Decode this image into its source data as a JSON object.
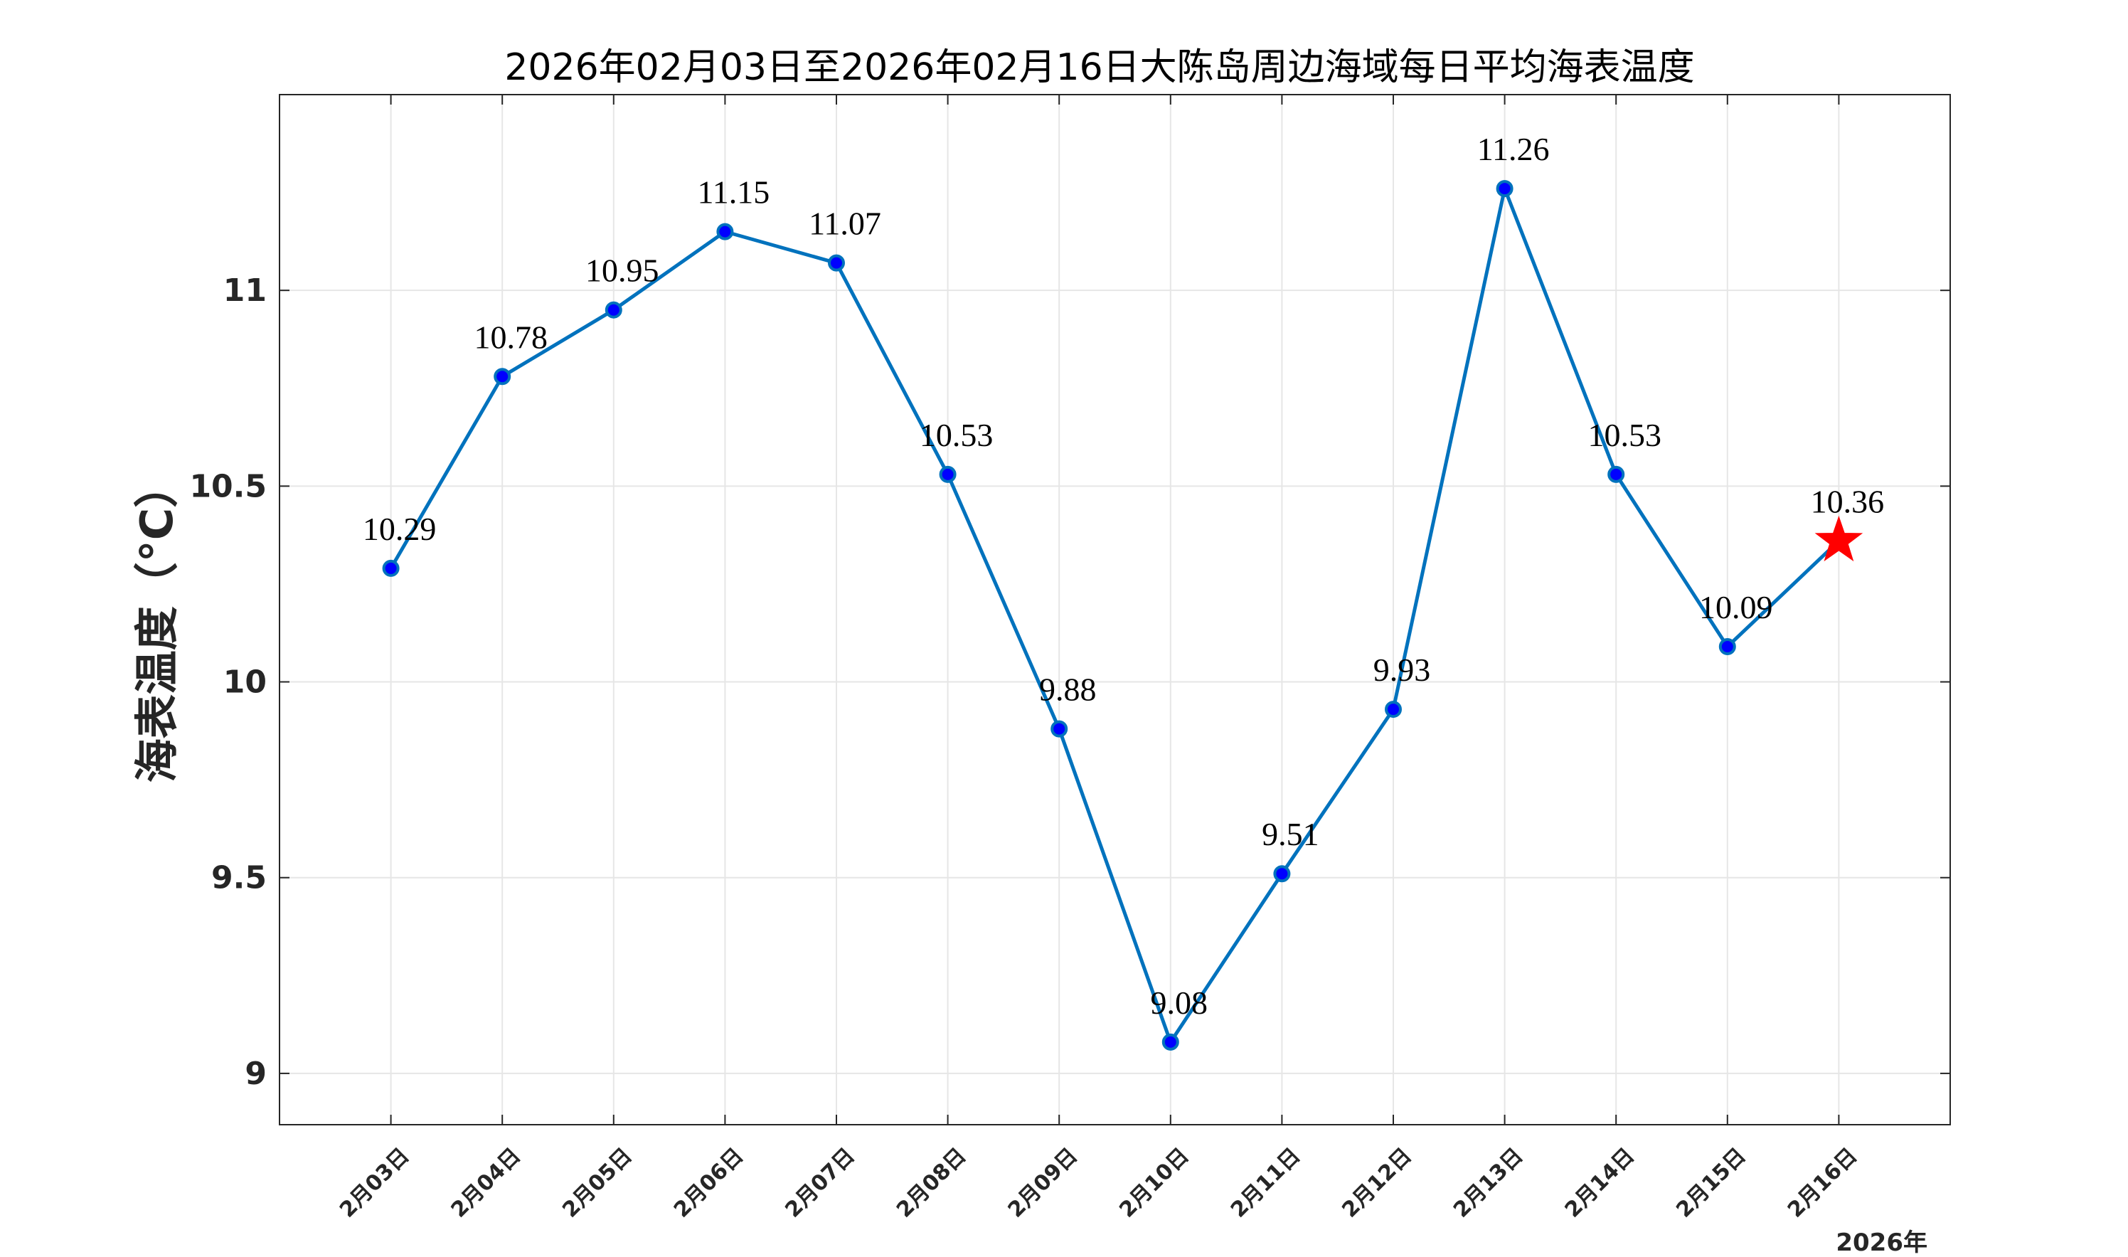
{
  "chart_data": {
    "type": "line",
    "title": "2026年02月03日至2026年02月16日大陈岛周边海域每日平均海表温度",
    "xlabel": "",
    "ylabel": "海表温度（°C）",
    "x_secondary_label": "2026年",
    "categories": [
      "2月03日",
      "2月04日",
      "2月05日",
      "2月06日",
      "2月07日",
      "2月08日",
      "2月09日",
      "2月10日",
      "2月11日",
      "2月12日",
      "2月13日",
      "2月14日",
      "2月15日",
      "2月16日"
    ],
    "series": [
      {
        "values": [
          10.29,
          10.78,
          10.95,
          11.15,
          11.07,
          10.53,
          9.88,
          9.08,
          9.51,
          9.93,
          11.26,
          10.53,
          10.09,
          10.36
        ],
        "labels": [
          "10.29",
          "10.78",
          "10.95",
          "11.15",
          "11.07",
          "10.53",
          "9.88",
          "9.08",
          "9.51",
          "9.93",
          "11.26",
          "10.53",
          "10.09",
          "10.36"
        ]
      }
    ],
    "highlight_last_point": "star",
    "yticks": [
      9,
      9.5,
      10,
      10.5,
      11
    ],
    "ytick_labels": [
      "9",
      "9.5",
      "10",
      "10.5",
      "11"
    ],
    "ylim": [
      8.869,
      11.5
    ],
    "xlim": [
      0,
      15
    ],
    "grid": true,
    "colors": {
      "line": "#0072BD",
      "marker_fill": "#0000FF",
      "marker_edge": "#0072BD",
      "star": "#FF0000",
      "grid": "#E6E6E6",
      "axes": "#262626"
    }
  }
}
